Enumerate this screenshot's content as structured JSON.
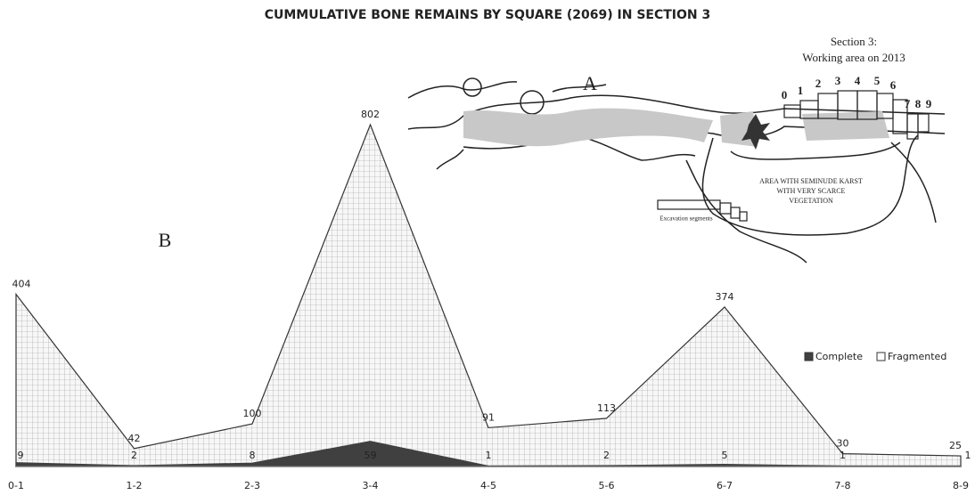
{
  "chart_data": {
    "type": "area",
    "title": "CUMMULATIVE BONE REMAINS BY SQUARE (2069) IN SECTION 3",
    "categories": [
      "0-1",
      "1-2",
      "2-3",
      "3-4",
      "4-5",
      "5-6",
      "6-7",
      "7-8",
      "8-9"
    ],
    "series": [
      {
        "name": "Complete",
        "color": "#404040",
        "values": [
          9,
          2,
          8,
          59,
          1,
          2,
          5,
          1,
          1
        ]
      },
      {
        "name": "Fragmented",
        "color": "#f2f2f2",
        "values": [
          404,
          42,
          100,
          802,
          91,
          113,
          374,
          30,
          25
        ]
      }
    ],
    "legend": "right",
    "panel_label": "B"
  },
  "inset": {
    "panel_label": "A",
    "title_line1": "Section 3:",
    "title_line2": "Working area on 2013",
    "segment_labels": [
      "0",
      "1",
      "2",
      "3",
      "4",
      "5",
      "6",
      "7",
      "8",
      "9"
    ],
    "area_line1": "AREA WITH SEMINUDE KARST",
    "area_line2": "WITH VERY SCARCE",
    "area_line3": "VEGETATION",
    "key_label": "Excavation segments"
  }
}
